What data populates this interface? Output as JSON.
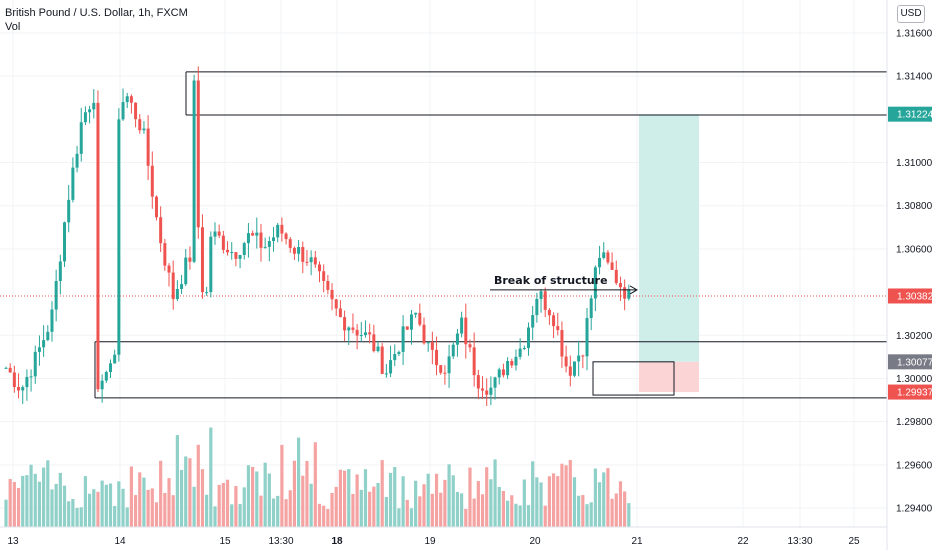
{
  "header": {
    "symbol_line": "British Pound / U.S. Dollar, 1h, FXCM",
    "volume_label": "Vol",
    "currency_button": "USD"
  },
  "colors": {
    "up": "#26a69a",
    "down": "#ef5350",
    "up_volume": "#8fd0c8",
    "down_volume": "#f5a3a2",
    "target_zone": "#cfeee9",
    "stop_zone": "#fbd5d5",
    "current_price_badge": "#ef5350",
    "target_badge": "#26a69a",
    "entry_badge": "#787b86",
    "stop_badge": "#ef5350"
  },
  "price_axis": {
    "ticks": [
      "1.31600",
      "1.31400",
      "1.31000",
      "1.30800",
      "1.30600",
      "1.30200",
      "1.30000",
      "1.29800",
      "1.29600",
      "1.29400"
    ],
    "badges": {
      "target": "1.31224",
      "current": "1.30382",
      "entry": "1.30077",
      "stop": "1.29937"
    }
  },
  "time_axis": {
    "labels": [
      "13",
      "14",
      "15",
      "13:30",
      "18",
      "19",
      "20",
      "21",
      "22",
      "13:30",
      "25"
    ]
  },
  "annotations": {
    "break_of_structure": "Break of structure"
  },
  "chart_data": {
    "type": "candlestick",
    "title": "British Pound / U.S. Dollar, 1h, FXCM",
    "ylim": [
      1.2931,
      1.3178
    ],
    "ticks_y": [
      1.316,
      1.314,
      1.31,
      1.308,
      1.306,
      1.302,
      1.3,
      1.298,
      1.296,
      1.294
    ],
    "ticks_x": [
      "13",
      "14",
      "15",
      "13:30",
      "18",
      "19",
      "20",
      "21",
      "22",
      "13:30",
      "25"
    ],
    "levels": [
      {
        "name": "resistance-high",
        "price": 1.3142
      },
      {
        "name": "resistance",
        "price": 1.3122
      },
      {
        "name": "support-upper",
        "price": 1.3017
      },
      {
        "name": "support-lower",
        "price": 1.2991
      }
    ],
    "long_position": {
      "entry": 1.30077,
      "target": 1.31224,
      "stop": 1.29937
    },
    "current_price": 1.30382,
    "close_sequence": [
      1.3005,
      1.2995,
      1.301,
      1.3028,
      1.308,
      1.312,
      1.3135,
      1.3143,
      1.313,
      1.3115,
      1.307,
      1.3038,
      1.3055,
      1.3068,
      1.3065,
      1.3058,
      1.3066,
      1.3061,
      1.3069,
      1.306,
      1.3055,
      1.304,
      1.3028,
      1.3023,
      1.3018,
      1.3003,
      1.3018,
      1.303,
      1.301,
      1.3005,
      1.3025,
      1.3,
      1.2995,
      1.3008,
      1.3015,
      1.304,
      1.303,
      1.3003,
      1.3015,
      1.3058,
      1.3048,
      1.3038
    ],
    "volume_bars": 150
  }
}
